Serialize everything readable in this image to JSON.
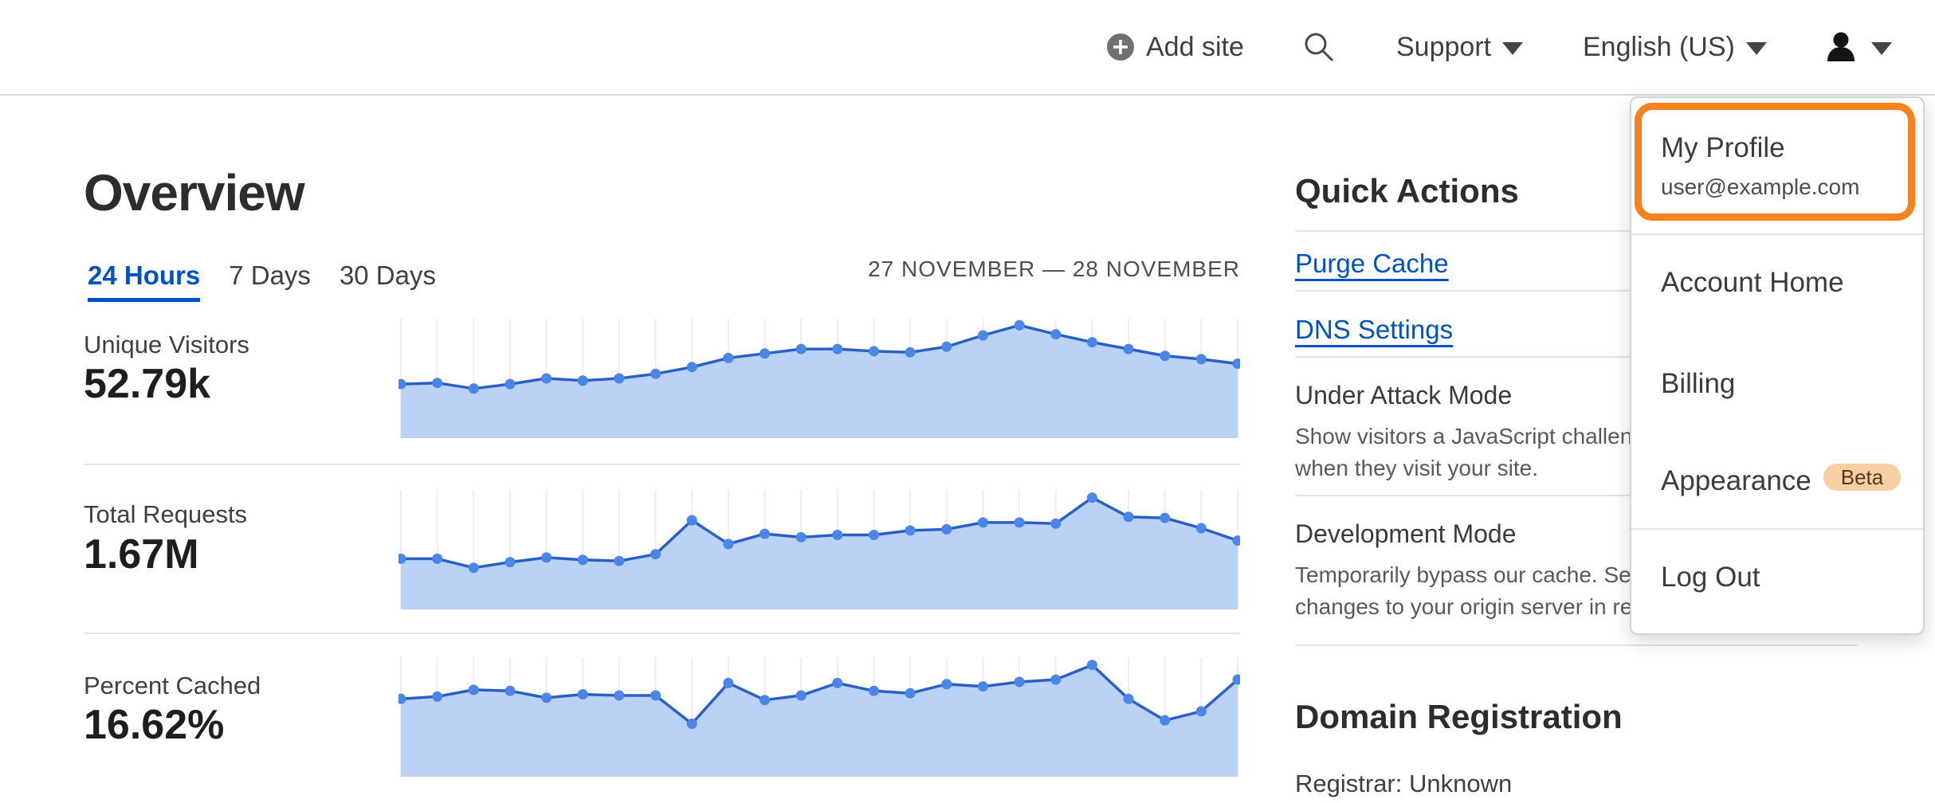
{
  "header": {
    "add_site_label": "Add site",
    "support_label": "Support",
    "language_label": "English (US)"
  },
  "overview": {
    "title": "Overview",
    "tabs": [
      {
        "label": "24 Hours",
        "active": true
      },
      {
        "label": "7 Days",
        "active": false
      },
      {
        "label": "30 Days",
        "active": false
      }
    ],
    "date_range": "27 NOVEMBER — 28 NOVEMBER",
    "metrics": [
      {
        "label": "Unique Visitors",
        "value": "52.79k"
      },
      {
        "label": "Total Requests",
        "value": "1.67M"
      },
      {
        "label": "Percent Cached",
        "value": "16.62%"
      }
    ]
  },
  "quick_actions": {
    "title": "Quick Actions",
    "links": [
      {
        "label": "Purge Cache"
      },
      {
        "label": "DNS Settings"
      }
    ],
    "toggles": [
      {
        "title": "Under Attack Mode",
        "description": "Show visitors a JavaScript challenge\nwhen they visit your site."
      },
      {
        "title": "Development Mode",
        "description": "Temporarily bypass our cache. See\nchanges to your origin server in realtime."
      }
    ]
  },
  "domain_registration": {
    "title": "Domain Registration",
    "registrar_line": "Registrar: Unknown"
  },
  "user_menu": {
    "profile": {
      "label": "My Profile",
      "email": "user@example.com"
    },
    "items": [
      {
        "label": "Account Home"
      },
      {
        "label": "Billing"
      },
      {
        "label": "Appearance",
        "badge": "Beta"
      }
    ],
    "logout_label": "Log Out"
  },
  "colors": {
    "accent_orange": "#f6821f",
    "link_blue": "#0051c3",
    "chart_line": "#2b5fc7",
    "chart_dot": "#4a85e8",
    "chart_fill": "#bad2f5",
    "chart_grid": "#ededf2",
    "beta_badge_bg": "#f8cfa2",
    "beta_badge_text": "#54391e"
  },
  "chart_data": [
    {
      "type": "area",
      "title": "Unique Visitors — 24 Hours sparkline",
      "value_label": "52.79k",
      "x_axis": "time, 27 November — 28 November (no tick labels shown)",
      "y_axis": "unique visitors (unlabeled sparkline)",
      "legend": "none",
      "grid": "vertical gridline at each point",
      "values_percent_of_plot_height": [
        45,
        46,
        41,
        45,
        50,
        48,
        50,
        54,
        60,
        68,
        72,
        76,
        76,
        74,
        73,
        78,
        88,
        97,
        89,
        82,
        76,
        70,
        67,
        63
      ]
    },
    {
      "type": "area",
      "title": "Total Requests — 24 Hours sparkline",
      "value_label": "1.67M",
      "x_axis": "time, 27 November — 28 November (no tick labels shown)",
      "y_axis": "requests (unlabeled sparkline)",
      "legend": "none",
      "grid": "vertical gridline at each point",
      "values_percent_of_plot_height": [
        42,
        42,
        34,
        39,
        43,
        41,
        40,
        46,
        76,
        55,
        64,
        61,
        63,
        63,
        67,
        68,
        74,
        74,
        73,
        96,
        79,
        78,
        69,
        58
      ]
    },
    {
      "type": "area",
      "title": "Percent Cached — 24 Hours sparkline",
      "value_label": "16.62%",
      "x_axis": "time, 27 November — 28 November (no tick labels shown)",
      "y_axis": "percent cached (unlabeled sparkline)",
      "legend": "none",
      "grid": "vertical gridline at each point",
      "values_percent_of_plot_height": [
        66,
        68,
        74,
        73,
        67,
        70,
        69,
        69,
        44,
        80,
        65,
        69,
        80,
        73,
        71,
        79,
        77,
        81,
        83,
        96,
        66,
        47,
        55,
        83
      ]
    }
  ]
}
